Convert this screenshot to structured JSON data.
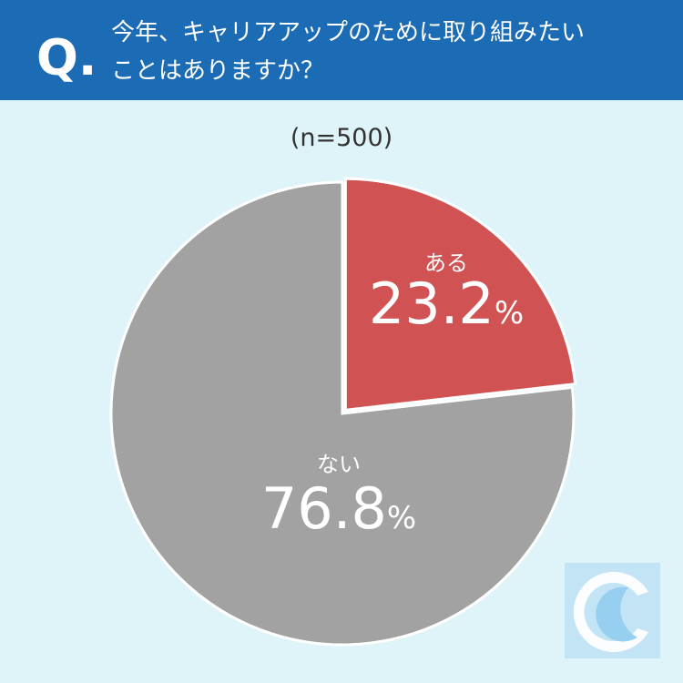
{
  "header": {
    "mark": "Q.",
    "lines": [
      "今年、キャリアアップのために取り組みたい",
      "ことはありますか？"
    ]
  },
  "chart_data": {
    "type": "pie",
    "subtitle": "(n=500)",
    "categories": [
      "ある",
      "ない"
    ],
    "values": [
      23.2,
      76.8
    ],
    "value_labels": [
      "23.2%",
      "76.8%"
    ],
    "colors": [
      "#d05252",
      "#a2a2a2"
    ]
  }
}
